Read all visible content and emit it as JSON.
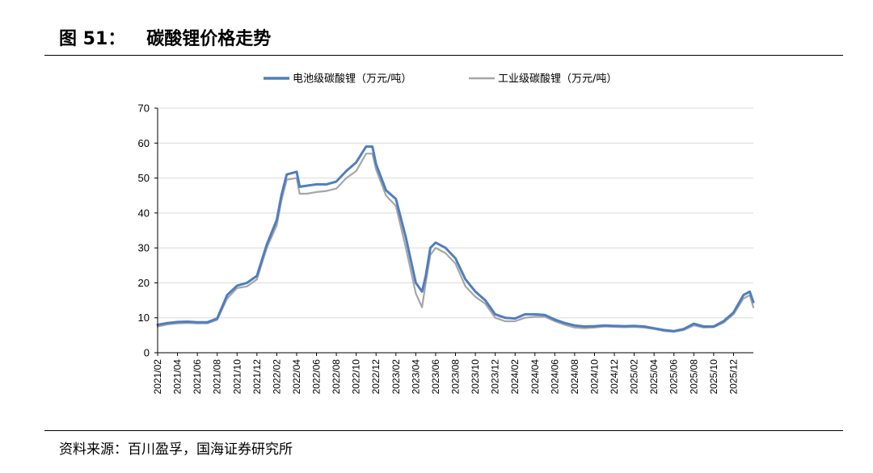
{
  "figure": {
    "label": "图 51：",
    "title": "碳酸锂价格走势",
    "source": "资料来源：百川盈孚，国海证券研究所"
  },
  "colors": {
    "series1": "#4f7ebf",
    "series2": "#a6a6a6",
    "grid": "#d9d9d9",
    "axis": "#000000"
  },
  "chart_data": {
    "type": "line",
    "title": "",
    "xlabel": "",
    "ylabel": "",
    "ylim": [
      0,
      70
    ],
    "yticks": [
      0,
      10,
      20,
      30,
      40,
      50,
      60,
      70
    ],
    "grid": "horizontal",
    "legend_position": "top",
    "x_start": "2021/02",
    "x_end": "2026/02",
    "xticks": [
      "2021/02",
      "2021/04",
      "2021/06",
      "2021/08",
      "2021/10",
      "2021/12",
      "2022/02",
      "2022/04",
      "2022/06",
      "2022/08",
      "2022/10",
      "2022/12",
      "2023/02",
      "2023/04",
      "2023/06",
      "2023/08",
      "2023/10",
      "2023/12",
      "2024/02",
      "2024/04",
      "2024/06",
      "2024/08",
      "2024/10",
      "2024/12",
      "2025/02",
      "2025/04",
      "2025/06",
      "2025/08",
      "2025/10",
      "2025/12"
    ],
    "series": [
      {
        "name": "电池级碳酸锂（万元/吨）",
        "color": "#4f7ebf",
        "points": [
          [
            "2021/02",
            8.0
          ],
          [
            "2021/03",
            8.5
          ],
          [
            "2021/04",
            8.8
          ],
          [
            "2021/05",
            8.9
          ],
          [
            "2021/06",
            8.7
          ],
          [
            "2021/07",
            8.7
          ],
          [
            "2021/08",
            9.8
          ],
          [
            "2021/09",
            16.5
          ],
          [
            "2021/10",
            19.2
          ],
          [
            "2021/11",
            20.0
          ],
          [
            "2021/12",
            22.0
          ],
          [
            "2022/01",
            31.0
          ],
          [
            "2022/02",
            38.0
          ],
          [
            "2022/02/15",
            45.0
          ],
          [
            "2022/03",
            51.0
          ],
          [
            "2022/04",
            51.8
          ],
          [
            "2022/04/10",
            47.5
          ],
          [
            "2022/05",
            47.8
          ],
          [
            "2022/06",
            48.2
          ],
          [
            "2022/07",
            48.2
          ],
          [
            "2022/08",
            49.0
          ],
          [
            "2022/09",
            52.0
          ],
          [
            "2022/10",
            54.5
          ],
          [
            "2022/11",
            59.0
          ],
          [
            "2022/11/20",
            59.0
          ],
          [
            "2022/12",
            54.0
          ],
          [
            "2023/01",
            46.5
          ],
          [
            "2023/02",
            44.0
          ],
          [
            "2023/03",
            33.0
          ],
          [
            "2023/04",
            20.0
          ],
          [
            "2023/04/20",
            17.5
          ],
          [
            "2023/05",
            22.0
          ],
          [
            "2023/05/15",
            30.0
          ],
          [
            "2023/06",
            31.5
          ],
          [
            "2023/07",
            30.0
          ],
          [
            "2023/08",
            27.0
          ],
          [
            "2023/09",
            21.0
          ],
          [
            "2023/10",
            17.5
          ],
          [
            "2023/11",
            15.0
          ],
          [
            "2023/12",
            11.0
          ],
          [
            "2024/01",
            10.0
          ],
          [
            "2024/02",
            9.8
          ],
          [
            "2024/03",
            11.0
          ],
          [
            "2024/04",
            11.0
          ],
          [
            "2024/05",
            10.8
          ],
          [
            "2024/06",
            9.5
          ],
          [
            "2024/07",
            8.5
          ],
          [
            "2024/08",
            7.8
          ],
          [
            "2024/09",
            7.5
          ],
          [
            "2024/10",
            7.6
          ],
          [
            "2024/11",
            7.8
          ],
          [
            "2024/12",
            7.7
          ],
          [
            "2025/01",
            7.6
          ],
          [
            "2025/02",
            7.7
          ],
          [
            "2025/03",
            7.5
          ],
          [
            "2025/04",
            7.0
          ],
          [
            "2025/05",
            6.5
          ],
          [
            "2025/06",
            6.2
          ],
          [
            "2025/07",
            6.8
          ],
          [
            "2025/08",
            8.3
          ],
          [
            "2025/09",
            7.5
          ],
          [
            "2025/10",
            7.5
          ],
          [
            "2025/11",
            9.0
          ],
          [
            "2025/12",
            11.5
          ],
          [
            "2026/01",
            16.5
          ],
          [
            "2026/01/20",
            17.5
          ],
          [
            "2026/02",
            14.5
          ]
        ]
      },
      {
        "name": "工业级碳酸锂（万元/吨）",
        "color": "#a6a6a6",
        "points": [
          [
            "2021/02",
            7.5
          ],
          [
            "2021/03",
            8.1
          ],
          [
            "2021/04",
            8.4
          ],
          [
            "2021/05",
            8.5
          ],
          [
            "2021/06",
            8.4
          ],
          [
            "2021/07",
            8.4
          ],
          [
            "2021/08",
            9.4
          ],
          [
            "2021/09",
            15.5
          ],
          [
            "2021/10",
            18.5
          ],
          [
            "2021/11",
            19.0
          ],
          [
            "2021/12",
            21.0
          ],
          [
            "2022/01",
            30.0
          ],
          [
            "2022/02",
            36.5
          ],
          [
            "2022/02/15",
            43.5
          ],
          [
            "2022/03",
            49.5
          ],
          [
            "2022/04",
            50.0
          ],
          [
            "2022/04/10",
            45.5
          ],
          [
            "2022/05",
            45.5
          ],
          [
            "2022/06",
            46.0
          ],
          [
            "2022/07",
            46.3
          ],
          [
            "2022/08",
            47.0
          ],
          [
            "2022/09",
            50.0
          ],
          [
            "2022/10",
            52.0
          ],
          [
            "2022/11",
            57.0
          ],
          [
            "2022/11/20",
            57.0
          ],
          [
            "2022/12",
            52.5
          ],
          [
            "2023/01",
            45.0
          ],
          [
            "2023/02",
            42.0
          ],
          [
            "2023/03",
            30.0
          ],
          [
            "2023/04",
            17.0
          ],
          [
            "2023/04/20",
            13.0
          ],
          [
            "2023/05",
            20.0
          ],
          [
            "2023/05/15",
            28.0
          ],
          [
            "2023/06",
            30.0
          ],
          [
            "2023/07",
            28.5
          ],
          [
            "2023/08",
            25.5
          ],
          [
            "2023/09",
            19.0
          ],
          [
            "2023/10",
            16.0
          ],
          [
            "2023/11",
            14.0
          ],
          [
            "2023/12",
            10.0
          ],
          [
            "2024/01",
            9.0
          ],
          [
            "2024/02",
            9.0
          ],
          [
            "2024/03",
            10.0
          ],
          [
            "2024/04",
            10.3
          ],
          [
            "2024/05",
            10.3
          ],
          [
            "2024/06",
            9.0
          ],
          [
            "2024/07",
            8.0
          ],
          [
            "2024/08",
            7.2
          ],
          [
            "2024/09",
            7.0
          ],
          [
            "2024/10",
            7.2
          ],
          [
            "2024/11",
            7.5
          ],
          [
            "2024/12",
            7.4
          ],
          [
            "2025/01",
            7.3
          ],
          [
            "2025/02",
            7.4
          ],
          [
            "2025/03",
            7.2
          ],
          [
            "2025/04",
            6.8
          ],
          [
            "2025/05",
            6.2
          ],
          [
            "2025/06",
            6.0
          ],
          [
            "2025/07",
            6.5
          ],
          [
            "2025/08",
            7.8
          ],
          [
            "2025/09",
            7.2
          ],
          [
            "2025/10",
            7.3
          ],
          [
            "2025/11",
            8.6
          ],
          [
            "2025/12",
            11.0
          ],
          [
            "2026/01",
            15.5
          ],
          [
            "2026/01/20",
            16.5
          ],
          [
            "2026/02",
            13.0
          ]
        ]
      }
    ]
  }
}
